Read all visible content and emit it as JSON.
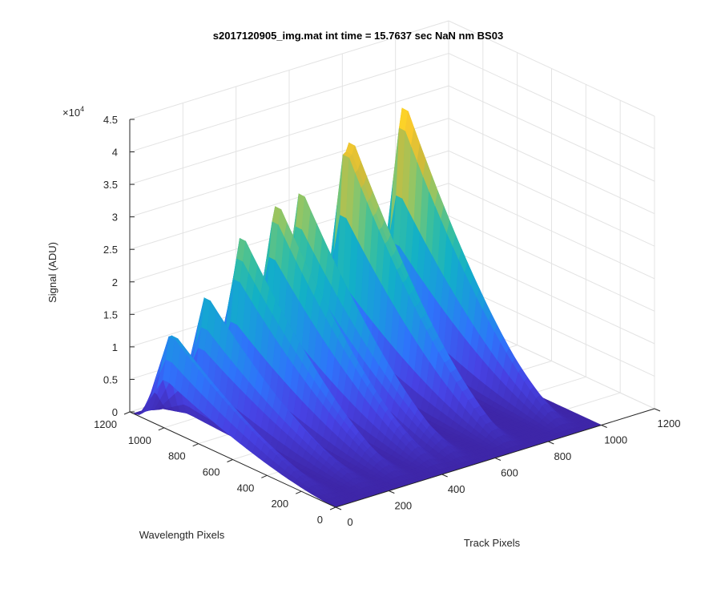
{
  "chart_data": {
    "type": "surface3d",
    "title": "s2017120905_img.mat int time = 15.7637 sec  NaN nm BS03",
    "xlabel": "Track Pixels",
    "ylabel": "Wavelength Pixels",
    "zlabel": "Signal (ADU)",
    "xlim": [
      0,
      1200
    ],
    "ylim": [
      0,
      1200
    ],
    "zlim": [
      0,
      45000
    ],
    "x_ticks": [
      "0",
      "200",
      "400",
      "600",
      "800",
      "1000",
      "1200"
    ],
    "y_ticks": [
      "0",
      "200",
      "400",
      "600",
      "800",
      "1000",
      "1200"
    ],
    "z_ticks": [
      "0",
      "0.5",
      "1",
      "1.5",
      "2",
      "2.5",
      "3",
      "3.5",
      "4",
      "4.5"
    ],
    "z_exponent_base": "×10",
    "z_exponent_power": "4",
    "grid": true,
    "colormap": "parula",
    "colormap_stops": [
      "#3e26a8",
      "#4742e4",
      "#2f73fb",
      "#1b98e0",
      "#12b0c7",
      "#38bf9f",
      "#8ec668",
      "#d0bb3a",
      "#fcca2c",
      "#f9fb15"
    ],
    "track_peaks": [
      {
        "x": 30,
        "z": 14500
      },
      {
        "x": 160,
        "z": 18000
      },
      {
        "x": 285,
        "z": 25500
      },
      {
        "x": 420,
        "z": 29500
      },
      {
        "x": 510,
        "z": 29000
      },
      {
        "x": 690,
        "z": 37500
      },
      {
        "x": 900,
        "z": 39000
      }
    ],
    "wavelength_profile": {
      "peak_y": 1000,
      "edge_y": 1150,
      "falloff_y": 0
    }
  }
}
